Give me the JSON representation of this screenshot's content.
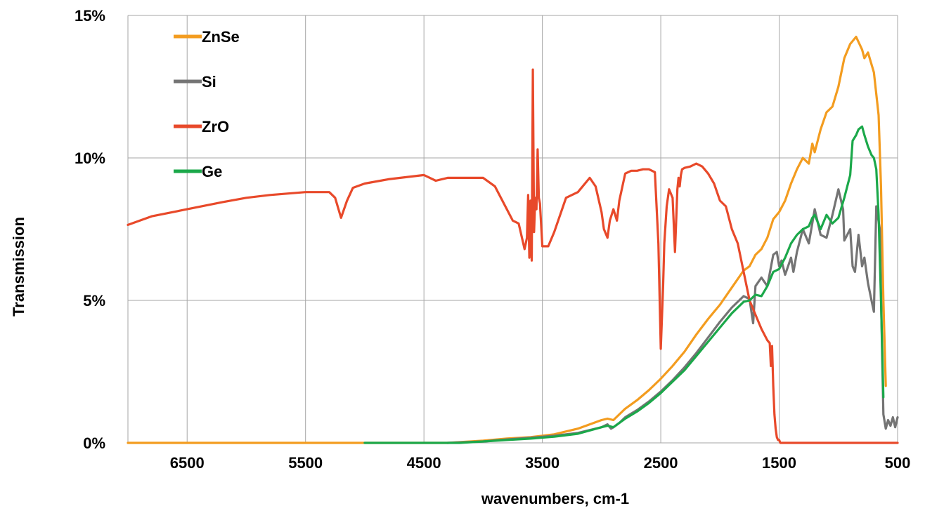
{
  "chart_data": {
    "type": "line",
    "title": "",
    "xlabel": "wavenumbers,   cm-1",
    "ylabel": "Transmission",
    "xlim": [
      7000,
      500
    ],
    "x_reversed": true,
    "ylim": [
      0,
      15
    ],
    "x_ticks": [
      6500,
      5500,
      4500,
      3500,
      2500,
      1500,
      500
    ],
    "x_tick_labels": [
      "6500",
      "5500",
      "4500",
      "3500",
      "2500",
      "1500",
      "500"
    ],
    "y_ticks": [
      0,
      5,
      10,
      15
    ],
    "y_tick_labels": [
      "0%",
      "5%",
      "10%",
      "15%"
    ],
    "grid": true,
    "legend_position": "top-left",
    "series": [
      {
        "name": "ZnSe",
        "color": "#f39c1f",
        "x": [
          7000,
          6000,
          5000,
          4300,
          4000,
          3800,
          3600,
          3400,
          3200,
          3000,
          2950,
          2900,
          2800,
          2700,
          2600,
          2500,
          2400,
          2300,
          2200,
          2100,
          2000,
          1900,
          1800,
          1750,
          1700,
          1650,
          1600,
          1550,
          1500,
          1450,
          1400,
          1350,
          1300,
          1250,
          1220,
          1200,
          1150,
          1100,
          1050,
          1000,
          950,
          900,
          850,
          800,
          780,
          750,
          700,
          660,
          640,
          620,
          600
        ],
        "y": [
          0,
          0,
          0,
          0,
          0.08,
          0.15,
          0.2,
          0.3,
          0.5,
          0.8,
          0.85,
          0.8,
          1.2,
          1.5,
          1.85,
          2.25,
          2.7,
          3.2,
          3.8,
          4.35,
          4.85,
          5.45,
          6.05,
          6.2,
          6.6,
          6.8,
          7.2,
          7.85,
          8.1,
          8.5,
          9.1,
          9.6,
          10.0,
          9.8,
          10.5,
          10.2,
          11.0,
          11.6,
          11.8,
          12.5,
          13.5,
          14.0,
          14.25,
          13.8,
          13.5,
          13.7,
          13.0,
          11.5,
          9.0,
          5.0,
          2.0
        ]
      },
      {
        "name": "Si",
        "color": "#747474",
        "x": [
          4300,
          4000,
          3800,
          3600,
          3400,
          3200,
          3000,
          2950,
          2920,
          2900,
          2850,
          2800,
          2700,
          2600,
          2500,
          2400,
          2300,
          2200,
          2100,
          2000,
          1900,
          1800,
          1750,
          1720,
          1700,
          1650,
          1600,
          1550,
          1520,
          1500,
          1480,
          1450,
          1400,
          1380,
          1350,
          1300,
          1250,
          1200,
          1150,
          1100,
          1050,
          1000,
          960,
          950,
          900,
          880,
          860,
          830,
          800,
          780,
          750,
          720,
          700,
          680,
          650,
          630,
          620,
          600,
          580,
          560,
          540,
          520,
          500
        ],
        "y": [
          0,
          0.05,
          0.12,
          0.18,
          0.25,
          0.35,
          0.55,
          0.65,
          0.5,
          0.55,
          0.7,
          0.9,
          1.15,
          1.45,
          1.8,
          2.2,
          2.65,
          3.15,
          3.7,
          4.25,
          4.75,
          5.15,
          5.05,
          4.2,
          5.5,
          5.8,
          5.5,
          6.6,
          6.7,
          6.2,
          6.4,
          5.9,
          6.5,
          6.0,
          6.7,
          7.5,
          7.0,
          8.2,
          7.3,
          7.2,
          8.0,
          8.9,
          8.2,
          7.1,
          7.5,
          6.2,
          6.0,
          7.3,
          6.2,
          6.5,
          5.6,
          5.0,
          4.6,
          8.3,
          7.5,
          3.0,
          1.0,
          0.5,
          0.8,
          0.6,
          0.9,
          0.55,
          0.9
        ]
      },
      {
        "name": "ZrO",
        "color": "#e8492a",
        "x": [
          7000,
          6800,
          6500,
          6200,
          6000,
          5800,
          5500,
          5300,
          5250,
          5200,
          5150,
          5100,
          5000,
          4800,
          4600,
          4500,
          4450,
          4400,
          4300,
          4200,
          4000,
          3900,
          3800,
          3750,
          3700,
          3650,
          3630,
          3620,
          3610,
          3600,
          3590,
          3580,
          3570,
          3560,
          3550,
          3540,
          3530,
          3520,
          3500,
          3450,
          3400,
          3300,
          3200,
          3100,
          3050,
          3000,
          2980,
          2950,
          2930,
          2900,
          2870,
          2850,
          2800,
          2750,
          2700,
          2650,
          2600,
          2550,
          2520,
          2500,
          2480,
          2470,
          2450,
          2430,
          2400,
          2380,
          2360,
          2350,
          2340,
          2330,
          2320,
          2300,
          2250,
          2200,
          2150,
          2100,
          2050,
          2000,
          1950,
          1900,
          1850,
          1800,
          1750,
          1700,
          1650,
          1600,
          1580,
          1570,
          1560,
          1550,
          1540,
          1530,
          1520,
          1510,
          1500,
          1490,
          1480,
          1470,
          1460,
          1000,
          500
        ],
        "y": [
          7.65,
          7.95,
          8.2,
          8.45,
          8.6,
          8.7,
          8.8,
          8.8,
          8.6,
          7.9,
          8.5,
          8.95,
          9.1,
          9.25,
          9.35,
          9.4,
          9.3,
          9.2,
          9.3,
          9.3,
          9.3,
          9.0,
          8.2,
          7.8,
          7.7,
          6.8,
          7.2,
          8.7,
          6.5,
          8.5,
          6.4,
          13.1,
          7.4,
          8.6,
          8.2,
          10.3,
          8.6,
          8.4,
          6.9,
          6.9,
          7.4,
          8.6,
          8.8,
          9.3,
          9.0,
          8.1,
          7.5,
          7.2,
          7.8,
          8.2,
          7.8,
          8.5,
          9.45,
          9.55,
          9.55,
          9.6,
          9.6,
          9.5,
          7.0,
          3.3,
          5.5,
          7.0,
          8.3,
          8.9,
          8.6,
          6.7,
          8.9,
          9.3,
          9.0,
          9.4,
          9.6,
          9.65,
          9.7,
          9.8,
          9.7,
          9.45,
          9.1,
          8.5,
          8.3,
          7.5,
          7.0,
          6.0,
          5.0,
          4.5,
          4.0,
          3.6,
          3.5,
          2.7,
          3.4,
          2.0,
          1.0,
          0.5,
          0.2,
          0.1,
          0.1,
          0,
          0,
          0,
          0,
          0,
          0
        ]
      },
      {
        "name": "Ge",
        "color": "#1ba84a",
        "x": [
          5000,
          4500,
          4200,
          4000,
          3800,
          3600,
          3400,
          3200,
          3000,
          2950,
          2900,
          2850,
          2800,
          2700,
          2600,
          2500,
          2400,
          2300,
          2200,
          2100,
          2000,
          1900,
          1800,
          1750,
          1700,
          1650,
          1600,
          1550,
          1500,
          1450,
          1400,
          1350,
          1300,
          1250,
          1220,
          1200,
          1150,
          1100,
          1050,
          1000,
          950,
          900,
          880,
          850,
          830,
          800,
          780,
          750,
          720,
          700,
          680,
          660,
          640,
          620
        ],
        "y": [
          0,
          0,
          0,
          0.05,
          0.1,
          0.15,
          0.22,
          0.32,
          0.55,
          0.6,
          0.55,
          0.7,
          0.85,
          1.1,
          1.4,
          1.75,
          2.15,
          2.55,
          3.05,
          3.55,
          4.05,
          4.55,
          4.95,
          5.0,
          5.2,
          5.15,
          5.5,
          6.0,
          6.1,
          6.5,
          7.0,
          7.3,
          7.5,
          7.6,
          7.9,
          8.0,
          7.5,
          8.0,
          7.7,
          7.9,
          8.6,
          9.4,
          10.6,
          10.8,
          11.0,
          11.1,
          10.8,
          10.4,
          10.1,
          10.0,
          9.6,
          8.0,
          5.0,
          1.6
        ]
      }
    ]
  }
}
